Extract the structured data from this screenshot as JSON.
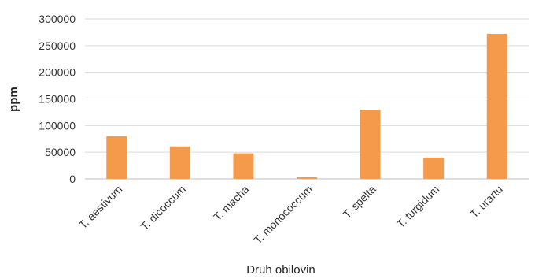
{
  "chart_data": {
    "type": "bar",
    "title": "",
    "xlabel": "Druh obilovin",
    "ylabel": "ppm",
    "categories": [
      "T. aestivum",
      "T. dicoccum",
      "T. macha",
      "T. monococcum",
      "T. spelta",
      "T. turgidum",
      "T. urartu"
    ],
    "values": [
      80000,
      61000,
      48000,
      3000,
      130000,
      40000,
      272000
    ],
    "ylim": [
      0,
      300000
    ],
    "yticks": [
      "0",
      "50000",
      "100000",
      "150000",
      "200000",
      "250000",
      "300000"
    ],
    "grid": true,
    "legend": "none",
    "colors": {
      "bar": "#F59A4B",
      "grid": "#D9D9D9"
    }
  }
}
